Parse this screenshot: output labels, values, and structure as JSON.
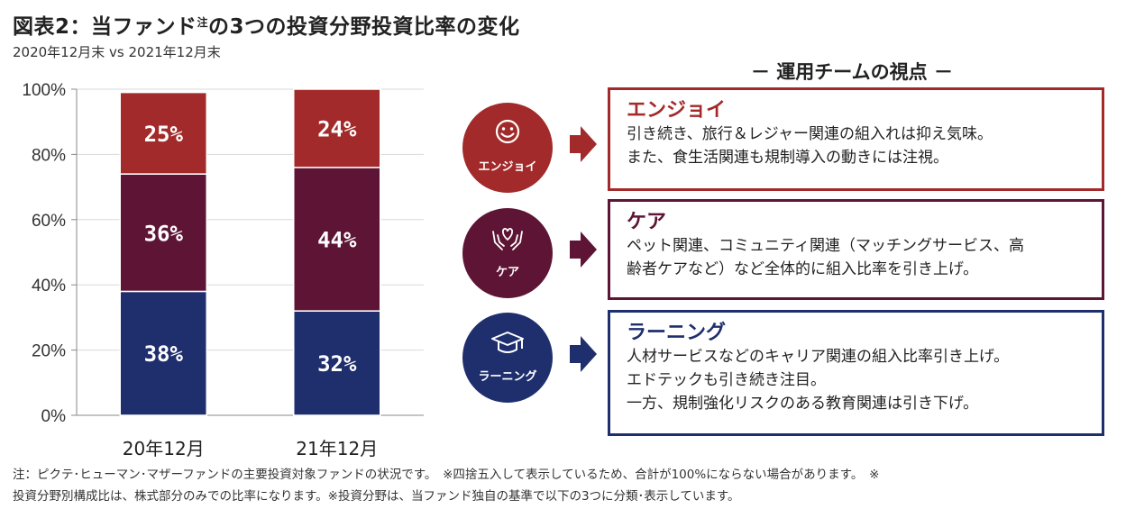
{
  "header": {
    "title": "図表2：当ファンド",
    "title_sup": "注",
    "title_tail": "の3つの投資分野投資比率の変化",
    "subtitle": "2020年12月末 vs 2021年12月末"
  },
  "chart_data": {
    "type": "bar",
    "stacked": true,
    "categories": [
      "20年12月",
      "21年12月"
    ],
    "series": [
      {
        "name": "ラーニング",
        "values": [
          38,
          32
        ],
        "labels": [
          "38%",
          "32%"
        ],
        "color": "#1f2f6e"
      },
      {
        "name": "ケア",
        "values": [
          36,
          44
        ],
        "labels": [
          "36%",
          "44%"
        ],
        "color": "#5e1535"
      },
      {
        "name": "エンジョイ",
        "values": [
          25,
          24
        ],
        "labels": [
          "25%",
          "24%"
        ],
        "color": "#a32a2a"
      }
    ],
    "ylim": [
      0,
      100
    ],
    "yticks": [
      "0%",
      "20%",
      "40%",
      "60%",
      "80%",
      "100%"
    ],
    "grid": true,
    "legend": "none"
  },
  "team": {
    "heading": "－ 運用チームの視点 －",
    "items": [
      {
        "circle_label": "エンジョイ",
        "icon": "smile-icon",
        "color": "#a32a2a",
        "title": "エンジョイ",
        "lines": [
          "引き続き、旅行＆レジャー関連の組入れは抑え気味。",
          "また、食生活関連も規制導入の動きには注視。"
        ]
      },
      {
        "circle_label": "ケア",
        "icon": "heart-hands-icon",
        "color": "#5e1535",
        "title": "ケア",
        "lines": [
          "ペット関連、コミュニティ関連（マッチングサービス、高",
          "齢者ケアなど）など全体的に組入比率を引き上げ。"
        ]
      },
      {
        "circle_label": "ラーニング",
        "icon": "graduation-cap-icon",
        "color": "#1f2f6e",
        "title": "ラーニング",
        "lines": [
          "人材サービスなどのキャリア関連の組入比率引き上げ。",
          "エドテックも引き続き注目。",
          "一方、規制強化リスクのある教育関連は引き下げ。"
        ]
      }
    ]
  },
  "footnote": {
    "line1": "注：ピクテ･ヒューマン･マザーファンドの主要投資対象ファンドの状況です。　※四捨五入して表示しているため、合計が100%にならない場合があります。　※",
    "line2": "投資分野別構成比は、株式部分のみでの比率になります。※投資分野は、当ファンド独自の基準で以下の3つに分類･表示しています。"
  }
}
